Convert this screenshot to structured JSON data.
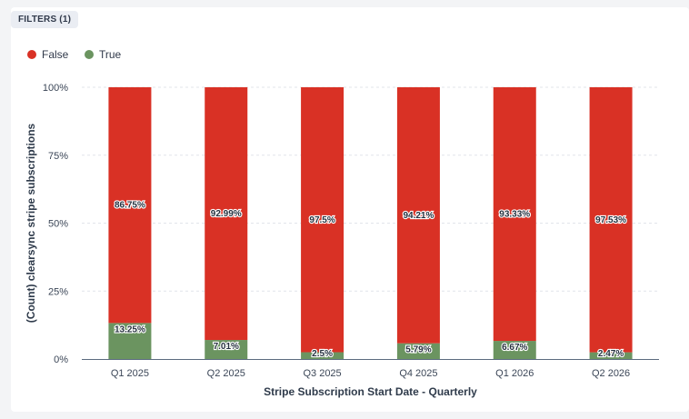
{
  "filters": {
    "label": "FILTERS (1)"
  },
  "legend": [
    {
      "label": "False",
      "color": "#d93125"
    },
    {
      "label": "True",
      "color": "#6b9460"
    }
  ],
  "chart_data": {
    "type": "bar",
    "stacked": true,
    "categories": [
      "Q1 2025",
      "Q2 2025",
      "Q3 2025",
      "Q4 2025",
      "Q1 2026",
      "Q2 2026"
    ],
    "series": [
      {
        "name": "True",
        "color": "#6b9460",
        "values": [
          13.25,
          7.01,
          2.5,
          5.79,
          6.67,
          2.47
        ],
        "labels": [
          "13.25%",
          "7.01%",
          "2.5%",
          "5.79%",
          "6.67%",
          "2.47%"
        ]
      },
      {
        "name": "False",
        "color": "#d93125",
        "values": [
          86.75,
          92.99,
          97.5,
          94.21,
          93.33,
          97.53
        ],
        "labels": [
          "86.75%",
          "92.99%",
          "97.5%",
          "94.21%",
          "93.33%",
          "97.53%"
        ]
      }
    ],
    "xlabel": "Stripe Subscription Start Date - Quarterly",
    "ylabel": "(Count) clearsync stripe subscriptions",
    "ylim": [
      0,
      100
    ],
    "yticks": [
      0,
      25,
      50,
      75,
      100
    ],
    "ytick_labels": [
      "0%",
      "25%",
      "50%",
      "75%",
      "100%"
    ],
    "grid": true,
    "legend_position": "top-left"
  }
}
